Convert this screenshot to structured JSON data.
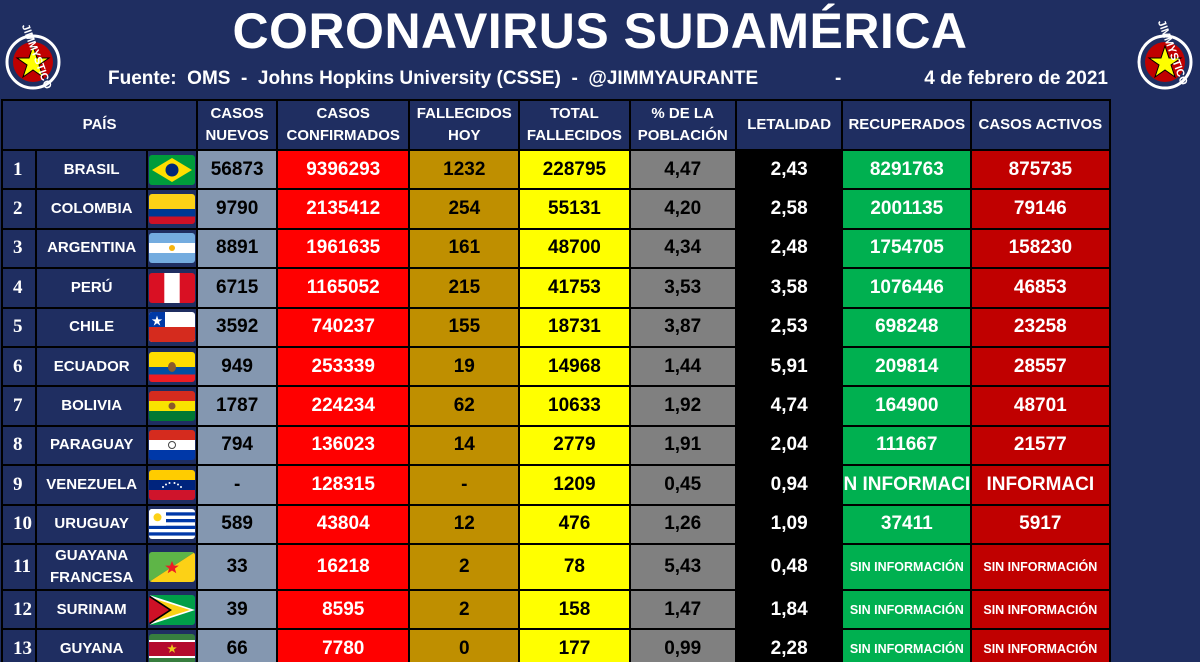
{
  "title": "CORONAVIRUS SUDAMÉRICA",
  "source": "Fuente:  OMS  -  Johns Hopkins University (CSSE)  -  @JIMMYAURANTE",
  "separator": "-",
  "date": "4 de febrero de 2021",
  "logo_text": "JIMMYSTICO",
  "headers": {
    "pais": "PAÍS",
    "nuevos": [
      "CASOS",
      "NUEVOS"
    ],
    "confirmados": [
      "CASOS",
      "CONFIRMADOS"
    ],
    "fallecidos_hoy": [
      "FALLECIDOS",
      "HOY"
    ],
    "total_fallecidos": [
      "TOTAL",
      "FALLECIDOS"
    ],
    "poblacion": [
      "% DE LA",
      "POBLACIÓN"
    ],
    "letalidad": "LETALIDAD",
    "recuperados": "RECUPERADOS",
    "activos": "CASOS ACTIVOS"
  },
  "rows": [
    {
      "n": "1",
      "pais": "BRASIL",
      "flag": "brazil-flag",
      "nuevos": "56873",
      "confirmados": "9396293",
      "fallecidos_hoy": "1232",
      "total_fallecidos": "228795",
      "poblacion": "4,47",
      "letalidad": "2,43",
      "recuperados": "8291763",
      "activos": "875735"
    },
    {
      "n": "2",
      "pais": "COLOMBIA",
      "flag": "colombia-flag",
      "nuevos": "9790",
      "confirmados": "2135412",
      "fallecidos_hoy": "254",
      "total_fallecidos": "55131",
      "poblacion": "4,20",
      "letalidad": "2,58",
      "recuperados": "2001135",
      "activos": "79146"
    },
    {
      "n": "3",
      "pais": "ARGENTINA",
      "flag": "argentina-flag",
      "nuevos": "8891",
      "confirmados": "1961635",
      "fallecidos_hoy": "161",
      "total_fallecidos": "48700",
      "poblacion": "4,34",
      "letalidad": "2,48",
      "recuperados": "1754705",
      "activos": "158230"
    },
    {
      "n": "4",
      "pais": "PERÚ",
      "flag": "peru-flag",
      "nuevos": "6715",
      "confirmados": "1165052",
      "fallecidos_hoy": "215",
      "total_fallecidos": "41753",
      "poblacion": "3,53",
      "letalidad": "3,58",
      "recuperados": "1076446",
      "activos": "46853"
    },
    {
      "n": "5",
      "pais": "CHILE",
      "flag": "chile-flag",
      "nuevos": "3592",
      "confirmados": "740237",
      "fallecidos_hoy": "155",
      "total_fallecidos": "18731",
      "poblacion": "3,87",
      "letalidad": "2,53",
      "recuperados": "698248",
      "activos": "23258"
    },
    {
      "n": "6",
      "pais": "ECUADOR",
      "flag": "ecuador-flag",
      "nuevos": "949",
      "confirmados": "253339",
      "fallecidos_hoy": "19",
      "total_fallecidos": "14968",
      "poblacion": "1,44",
      "letalidad": "5,91",
      "recuperados": "209814",
      "activos": "28557"
    },
    {
      "n": "7",
      "pais": "BOLIVIA",
      "flag": "bolivia-flag",
      "nuevos": "1787",
      "confirmados": "224234",
      "fallecidos_hoy": "62",
      "total_fallecidos": "10633",
      "poblacion": "1,92",
      "letalidad": "4,74",
      "recuperados": "164900",
      "activos": "48701"
    },
    {
      "n": "8",
      "pais": "PARAGUAY",
      "flag": "paraguay-flag",
      "nuevos": "794",
      "confirmados": "136023",
      "fallecidos_hoy": "14",
      "total_fallecidos": "2779",
      "poblacion": "1,91",
      "letalidad": "2,04",
      "recuperados": "111667",
      "activos": "21577"
    },
    {
      "n": "9",
      "pais": "VENEZUELA",
      "flag": "venezuela-flag",
      "nuevos": "-",
      "confirmados": "128315",
      "fallecidos_hoy": "-",
      "total_fallecidos": "1209",
      "poblacion": "0,45",
      "letalidad": "0,94",
      "recuperados": "N INFORMACI",
      "activos": "INFORMACI"
    },
    {
      "n": "10",
      "pais": "URUGUAY",
      "flag": "uruguay-flag",
      "nuevos": "589",
      "confirmados": "43804",
      "fallecidos_hoy": "12",
      "total_fallecidos": "476",
      "poblacion": "1,26",
      "letalidad": "1,09",
      "recuperados": "37411",
      "activos": "5917"
    },
    {
      "n": "11",
      "pais": "GUAYANA FRANCESA",
      "flag": "french-guiana-flag",
      "nuevos": "33",
      "confirmados": "16218",
      "fallecidos_hoy": "2",
      "total_fallecidos": "78",
      "poblacion": "5,43",
      "letalidad": "0,48",
      "recuperados": "SIN INFORMACIÓN",
      "activos": "SIN INFORMACIÓN"
    },
    {
      "n": "12",
      "pais": "SURINAM",
      "flag": "guyana-flag",
      "nuevos": "39",
      "confirmados": "8595",
      "fallecidos_hoy": "2",
      "total_fallecidos": "158",
      "poblacion": "1,47",
      "letalidad": "1,84",
      "recuperados": "SIN INFORMACIÓN",
      "activos": "SIN INFORMACIÓN"
    },
    {
      "n": "13",
      "pais": "GUYANA",
      "flag": "suriname-flag",
      "nuevos": "66",
      "confirmados": "7780",
      "fallecidos_hoy": "0",
      "total_fallecidos": "177",
      "poblacion": "0,99",
      "letalidad": "2,28",
      "recuperados": "SIN INFORMACIÓN",
      "activos": "SIN INFORMACIÓN"
    }
  ],
  "colors": {
    "background": "#1f2e61",
    "nuevos": "#8497b0",
    "confirmados": "#ff0000",
    "fallecidos_hoy": "#bf8f00",
    "total_fallecidos": "#ffff00",
    "poblacion": "#808080",
    "letalidad": "#000000",
    "recuperados": "#00b050",
    "activos": "#c00000"
  }
}
